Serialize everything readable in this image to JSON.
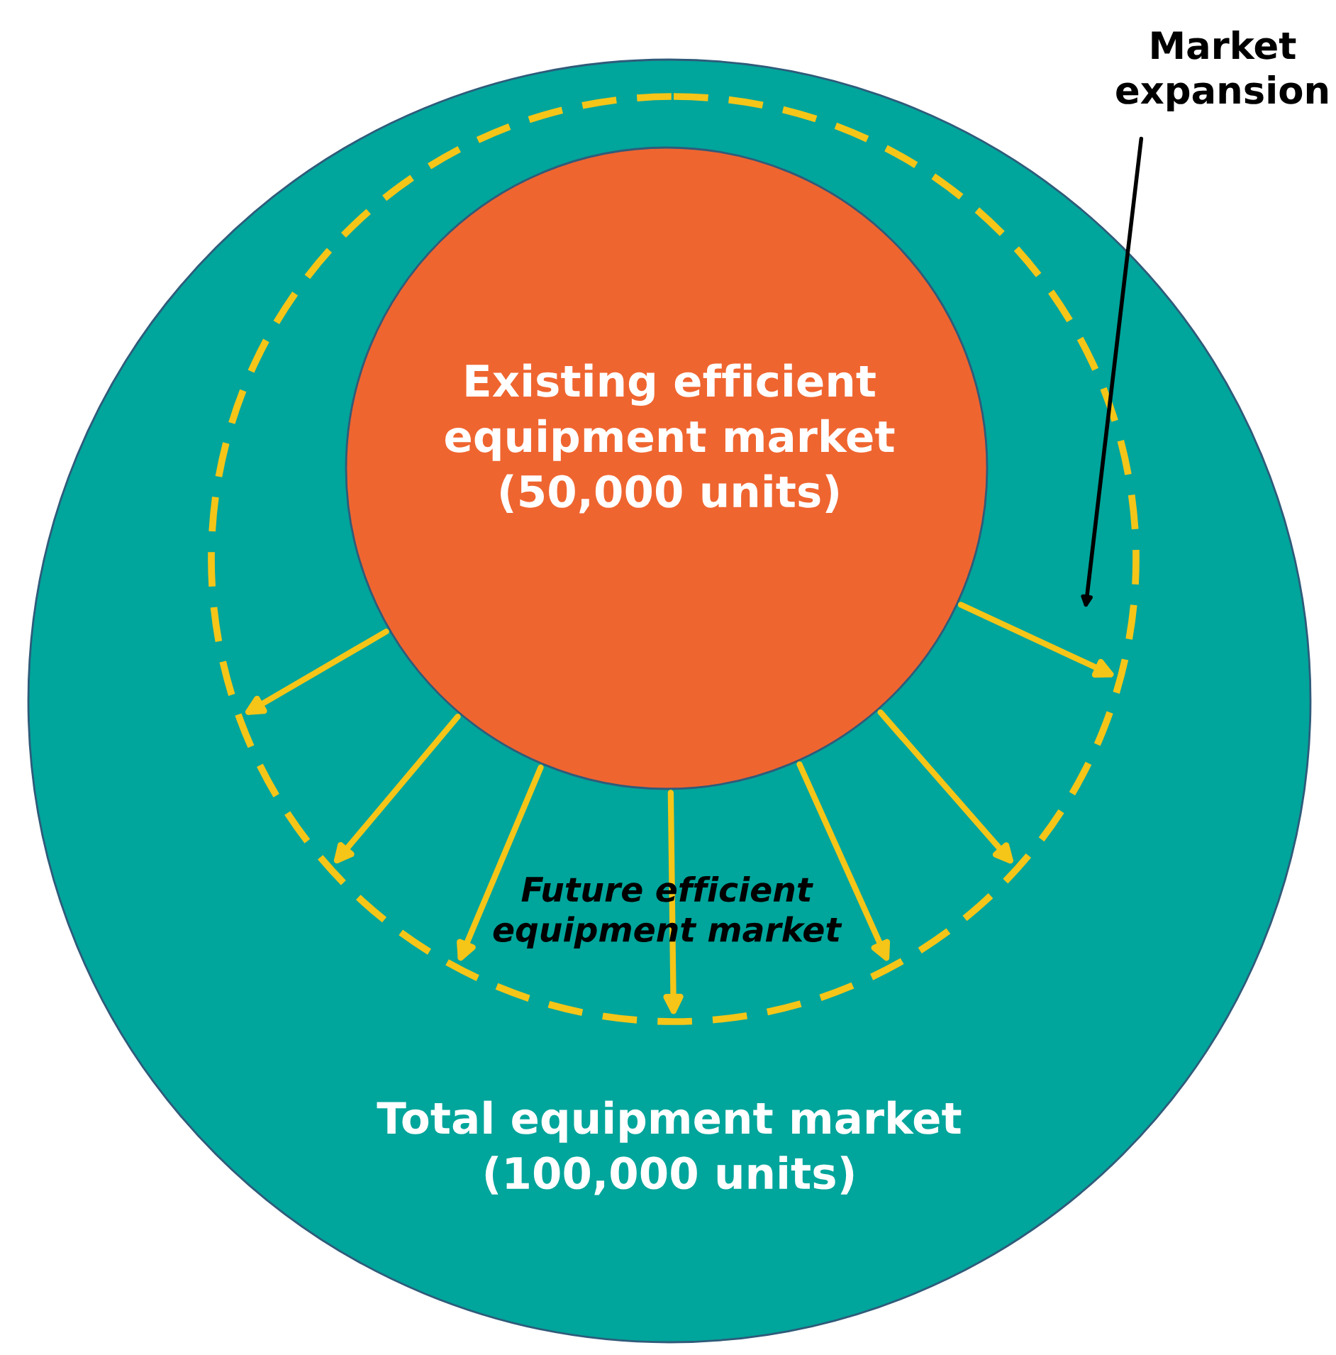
{
  "chart_data": {
    "type": "other",
    "categories": [
      "Total equipment market",
      "Existing efficient\nequipment market",
      "Future efficient\nequipment market"
    ],
    "values": [
      100000,
      50000,
      null
    ],
    "value_labels": [
      "(100,000 units)",
      "(50,000 units)",
      null
    ],
    "colors": [
      "#00a59b",
      "#ef6530",
      "#f5c518"
    ],
    "annotations": [
      "Market\nexpansion"
    ]
  }
}
